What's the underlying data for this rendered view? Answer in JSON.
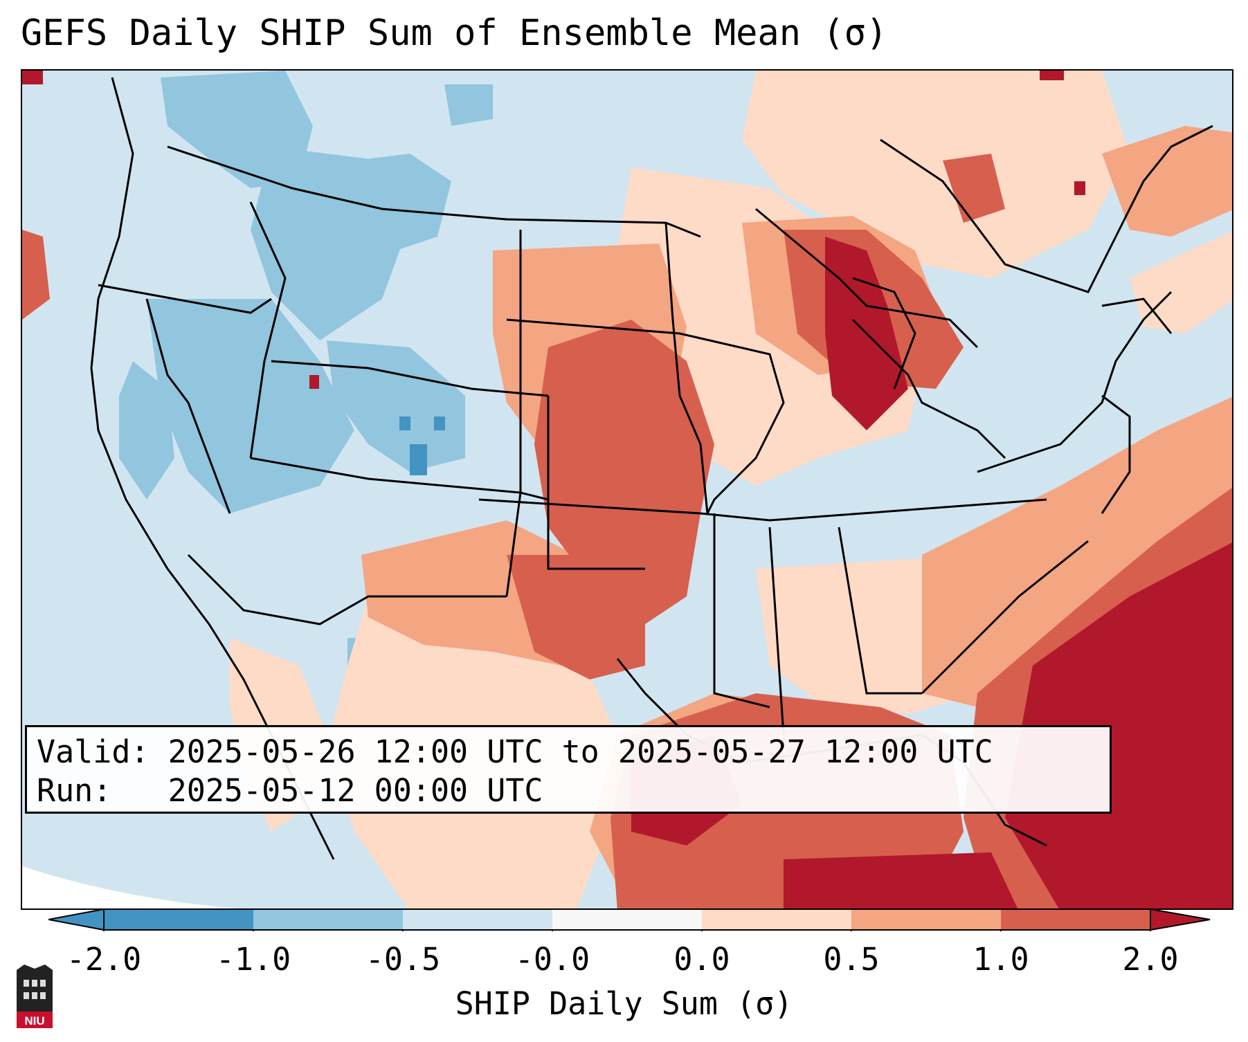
{
  "title": "GEFS Daily SHIP Sum of Ensemble Mean (σ)",
  "info": {
    "valid_label": "Valid:",
    "valid_value": "2025-05-26 12:00 UTC to 2025-05-27 12:00 UTC",
    "run_label": "Run:",
    "run_value": "2025-05-12 00:00 UTC"
  },
  "colorbar": {
    "label": "SHIP Daily Sum (σ)",
    "ticks": [
      "-2.0",
      "-1.0",
      "-0.5",
      "-0.0",
      "0.0",
      "0.5",
      "1.0",
      "2.0"
    ],
    "colors": [
      "#4393c3",
      "#92c5de",
      "#d1e5f0",
      "#f7f7f7",
      "#fddbc7",
      "#f4a582",
      "#d6604d",
      "#b2182b"
    ],
    "extend": "both"
  },
  "logo": {
    "text": "NIU"
  },
  "map": {
    "region": "Contiguous United States with Gulf of Mexico",
    "field": "SHIP daily sum anomaly (sigma)"
  }
}
